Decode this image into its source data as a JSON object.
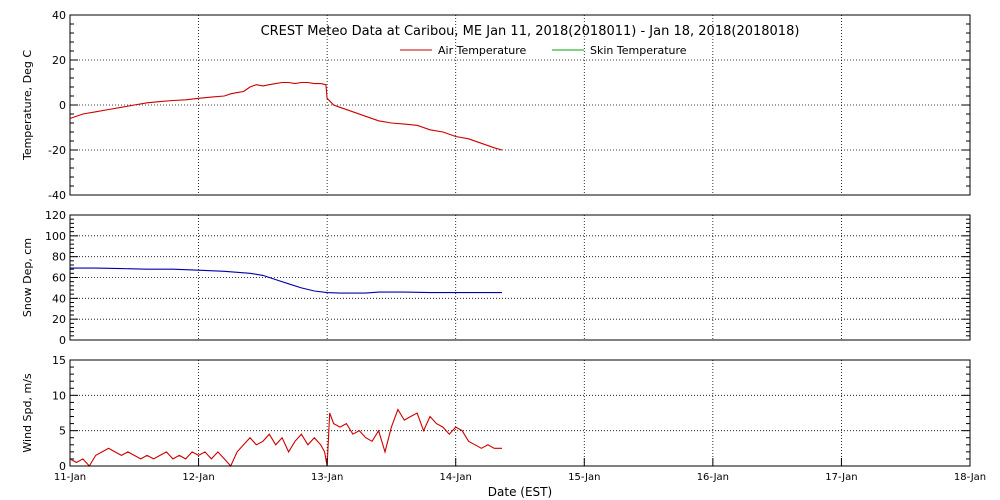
{
  "chart_data": {
    "type": "line",
    "title": "CREST Meteo Data at Caribou, ME   Jan 11, 2018(2018011) - Jan 18, 2018(2018018)",
    "xlabel": "Date (EST)",
    "x_ticks": [
      "11-Jan",
      "12-Jan",
      "13-Jan",
      "14-Jan",
      "15-Jan",
      "16-Jan",
      "17-Jan",
      "18-Jan"
    ],
    "xlim": [
      0,
      7
    ],
    "x_unit": "days since 11-Jan 00:00",
    "grid": true,
    "legend_position": "top-center",
    "panels": [
      {
        "ylabel": "Temperature, Deg C",
        "ylim": [
          -40,
          40
        ],
        "yticks": [
          -40,
          -20,
          0,
          20,
          40
        ],
        "series": [
          {
            "name": "Air Temperature",
            "color": "#cc0000",
            "x": [
              0.0,
              0.1,
              0.2,
              0.3,
              0.4,
              0.5,
              0.6,
              0.7,
              0.8,
              0.9,
              1.0,
              1.1,
              1.2,
              1.25,
              1.3,
              1.35,
              1.4,
              1.45,
              1.5,
              1.55,
              1.6,
              1.65,
              1.7,
              1.75,
              1.8,
              1.85,
              1.9,
              1.95,
              1.99,
              2.0,
              2.05,
              2.1,
              2.2,
              2.3,
              2.4,
              2.5,
              2.6,
              2.7,
              2.8,
              2.9,
              3.0,
              3.1,
              3.2,
              3.3,
              3.36
            ],
            "values": [
              -6,
              -4,
              -3,
              -2,
              -1,
              0,
              1,
              1.5,
              2,
              2.3,
              3,
              3.5,
              4,
              5,
              5.5,
              6,
              8,
              9,
              8.5,
              9,
              9.5,
              10,
              10,
              9.5,
              10,
              10,
              9.5,
              9.5,
              9,
              3,
              0,
              -1,
              -3,
              -5,
              -7,
              -8,
              -8.5,
              -9,
              -11,
              -12,
              -14,
              -15,
              -17,
              -19,
              -20
            ]
          },
          {
            "name": "Skin Temperature",
            "color": "#00aa00",
            "x": [],
            "values": []
          }
        ]
      },
      {
        "ylabel": "Snow Dep, cm",
        "ylim": [
          0,
          120
        ],
        "yticks": [
          0,
          20,
          40,
          60,
          80,
          100,
          120
        ],
        "series": [
          {
            "name": "Snow Depth",
            "color": "#0000aa",
            "x": [
              0.0,
              0.2,
              0.4,
              0.6,
              0.8,
              1.0,
              1.2,
              1.4,
              1.5,
              1.6,
              1.7,
              1.8,
              1.9,
              2.0,
              2.1,
              2.2,
              2.3,
              2.4,
              2.6,
              2.8,
              3.0,
              3.2,
              3.36
            ],
            "values": [
              69,
              69,
              68.5,
              68,
              68,
              67,
              66,
              64,
              62,
              58,
              54,
              50,
              47,
              45.5,
              45,
              45,
              45,
              46,
              46,
              45.5,
              45.5,
              45.5,
              45.5
            ]
          }
        ]
      },
      {
        "ylabel": "Wind Spd, m/s",
        "ylim": [
          0,
          15
        ],
        "yticks": [
          0,
          5,
          10,
          15
        ],
        "series": [
          {
            "name": "Wind Speed",
            "color": "#cc0000",
            "x": [
              0.0,
              0.05,
              0.1,
              0.15,
              0.2,
              0.25,
              0.3,
              0.35,
              0.4,
              0.45,
              0.5,
              0.55,
              0.6,
              0.65,
              0.7,
              0.75,
              0.8,
              0.85,
              0.9,
              0.95,
              1.0,
              1.05,
              1.1,
              1.15,
              1.2,
              1.25,
              1.3,
              1.35,
              1.4,
              1.45,
              1.5,
              1.55,
              1.6,
              1.65,
              1.7,
              1.75,
              1.8,
              1.85,
              1.9,
              1.95,
              1.98,
              2.0,
              2.02,
              2.05,
              2.1,
              2.15,
              2.2,
              2.25,
              2.3,
              2.35,
              2.4,
              2.45,
              2.5,
              2.55,
              2.6,
              2.65,
              2.7,
              2.75,
              2.8,
              2.85,
              2.9,
              2.95,
              3.0,
              3.05,
              3.1,
              3.15,
              3.2,
              3.25,
              3.3,
              3.36
            ],
            "values": [
              1,
              0.5,
              1,
              0,
              1.5,
              2,
              2.5,
              2,
              1.5,
              2,
              1.5,
              1,
              1.5,
              1,
              1.5,
              2,
              1,
              1.5,
              1,
              2,
              1.5,
              2,
              1,
              2,
              1,
              0,
              2,
              3,
              4,
              3,
              3.5,
              4.5,
              3,
              4,
              2,
              3.5,
              4.5,
              3,
              4,
              3,
              2,
              0,
              7.5,
              6,
              5.5,
              6,
              4.5,
              5,
              4,
              3.5,
              5,
              2,
              5.5,
              8,
              6.5,
              7,
              7.5,
              5,
              7,
              6,
              5.5,
              4.5,
              5.5,
              5,
              3.5,
              3,
              2.5,
              3,
              2.5,
              2.5
            ]
          }
        ]
      }
    ]
  }
}
